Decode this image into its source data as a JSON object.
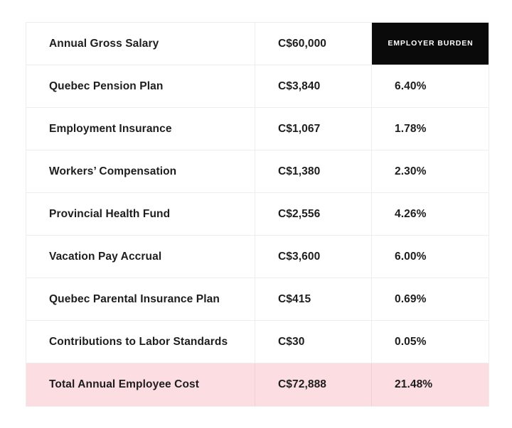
{
  "colors": {
    "page_bg": "#ffffff",
    "text": "#1d1d1f",
    "border": "#ededed",
    "burden_header_bg": "#0a0a0a",
    "burden_header_text": "#ffffff",
    "total_row_bg": "#fcdde1"
  },
  "table": {
    "salary_row": {
      "label": "Annual Gross Salary",
      "amount": "C$60,000",
      "burden_header": "EMPLOYER BURDEN"
    },
    "rows": [
      {
        "label": "Quebec Pension Plan",
        "amount": "C$3,840",
        "burden": "6.40%"
      },
      {
        "label": "Employment Insurance",
        "amount": "C$1,067",
        "burden": "1.78%"
      },
      {
        "label": "Workers’ Compensation",
        "amount": "C$1,380",
        "burden": "2.30%"
      },
      {
        "label": "Provincial Health Fund",
        "amount": "C$2,556",
        "burden": "4.26%"
      },
      {
        "label": "Vacation Pay Accrual",
        "amount": "C$3,600",
        "burden": "6.00%"
      },
      {
        "label": "Quebec Parental Insurance Plan",
        "amount": "C$415",
        "burden": "0.69%"
      },
      {
        "label": "Contributions to Labor Standards",
        "amount": "C$30",
        "burden": "0.05%"
      }
    ],
    "total_row": {
      "label": "Total Annual Employee Cost",
      "amount": "C$72,888",
      "burden": "21.48%"
    }
  },
  "chart_data": {
    "type": "table",
    "header_row": [
      "Annual Gross Salary",
      "C$60,000",
      "EMPLOYER BURDEN"
    ],
    "rows": [
      [
        "Quebec Pension Plan",
        "C$3,840",
        "6.40%"
      ],
      [
        "Employment Insurance",
        "C$1,067",
        "1.78%"
      ],
      [
        "Workers’ Compensation",
        "C$1,380",
        "2.30%"
      ],
      [
        "Provincial Health Fund",
        "C$2,556",
        "4.26%"
      ],
      [
        "Vacation Pay Accrual",
        "C$3,600",
        "6.00%"
      ],
      [
        "Quebec Parental Insurance Plan",
        "C$415",
        "0.69%"
      ],
      [
        "Contributions to Labor Standards",
        "C$30",
        "0.05%"
      ]
    ],
    "total_row": [
      "Total Annual Employee Cost",
      "C$72,888",
      "21.48%"
    ],
    "numeric": {
      "annual_gross_salary_cad": 60000,
      "items": [
        {
          "name": "Quebec Pension Plan",
          "amount_cad": 3840,
          "burden_pct": 6.4
        },
        {
          "name": "Employment Insurance",
          "amount_cad": 1067,
          "burden_pct": 1.78
        },
        {
          "name": "Workers’ Compensation",
          "amount_cad": 1380,
          "burden_pct": 2.3
        },
        {
          "name": "Provincial Health Fund",
          "amount_cad": 2556,
          "burden_pct": 4.26
        },
        {
          "name": "Vacation Pay Accrual",
          "amount_cad": 3600,
          "burden_pct": 6.0
        },
        {
          "name": "Quebec Parental Insurance Plan",
          "amount_cad": 415,
          "burden_pct": 0.69
        },
        {
          "name": "Contributions to Labor Standards",
          "amount_cad": 30,
          "burden_pct": 0.05
        }
      ],
      "total_annual_employee_cost_cad": 72888,
      "total_burden_pct": 21.48
    }
  }
}
